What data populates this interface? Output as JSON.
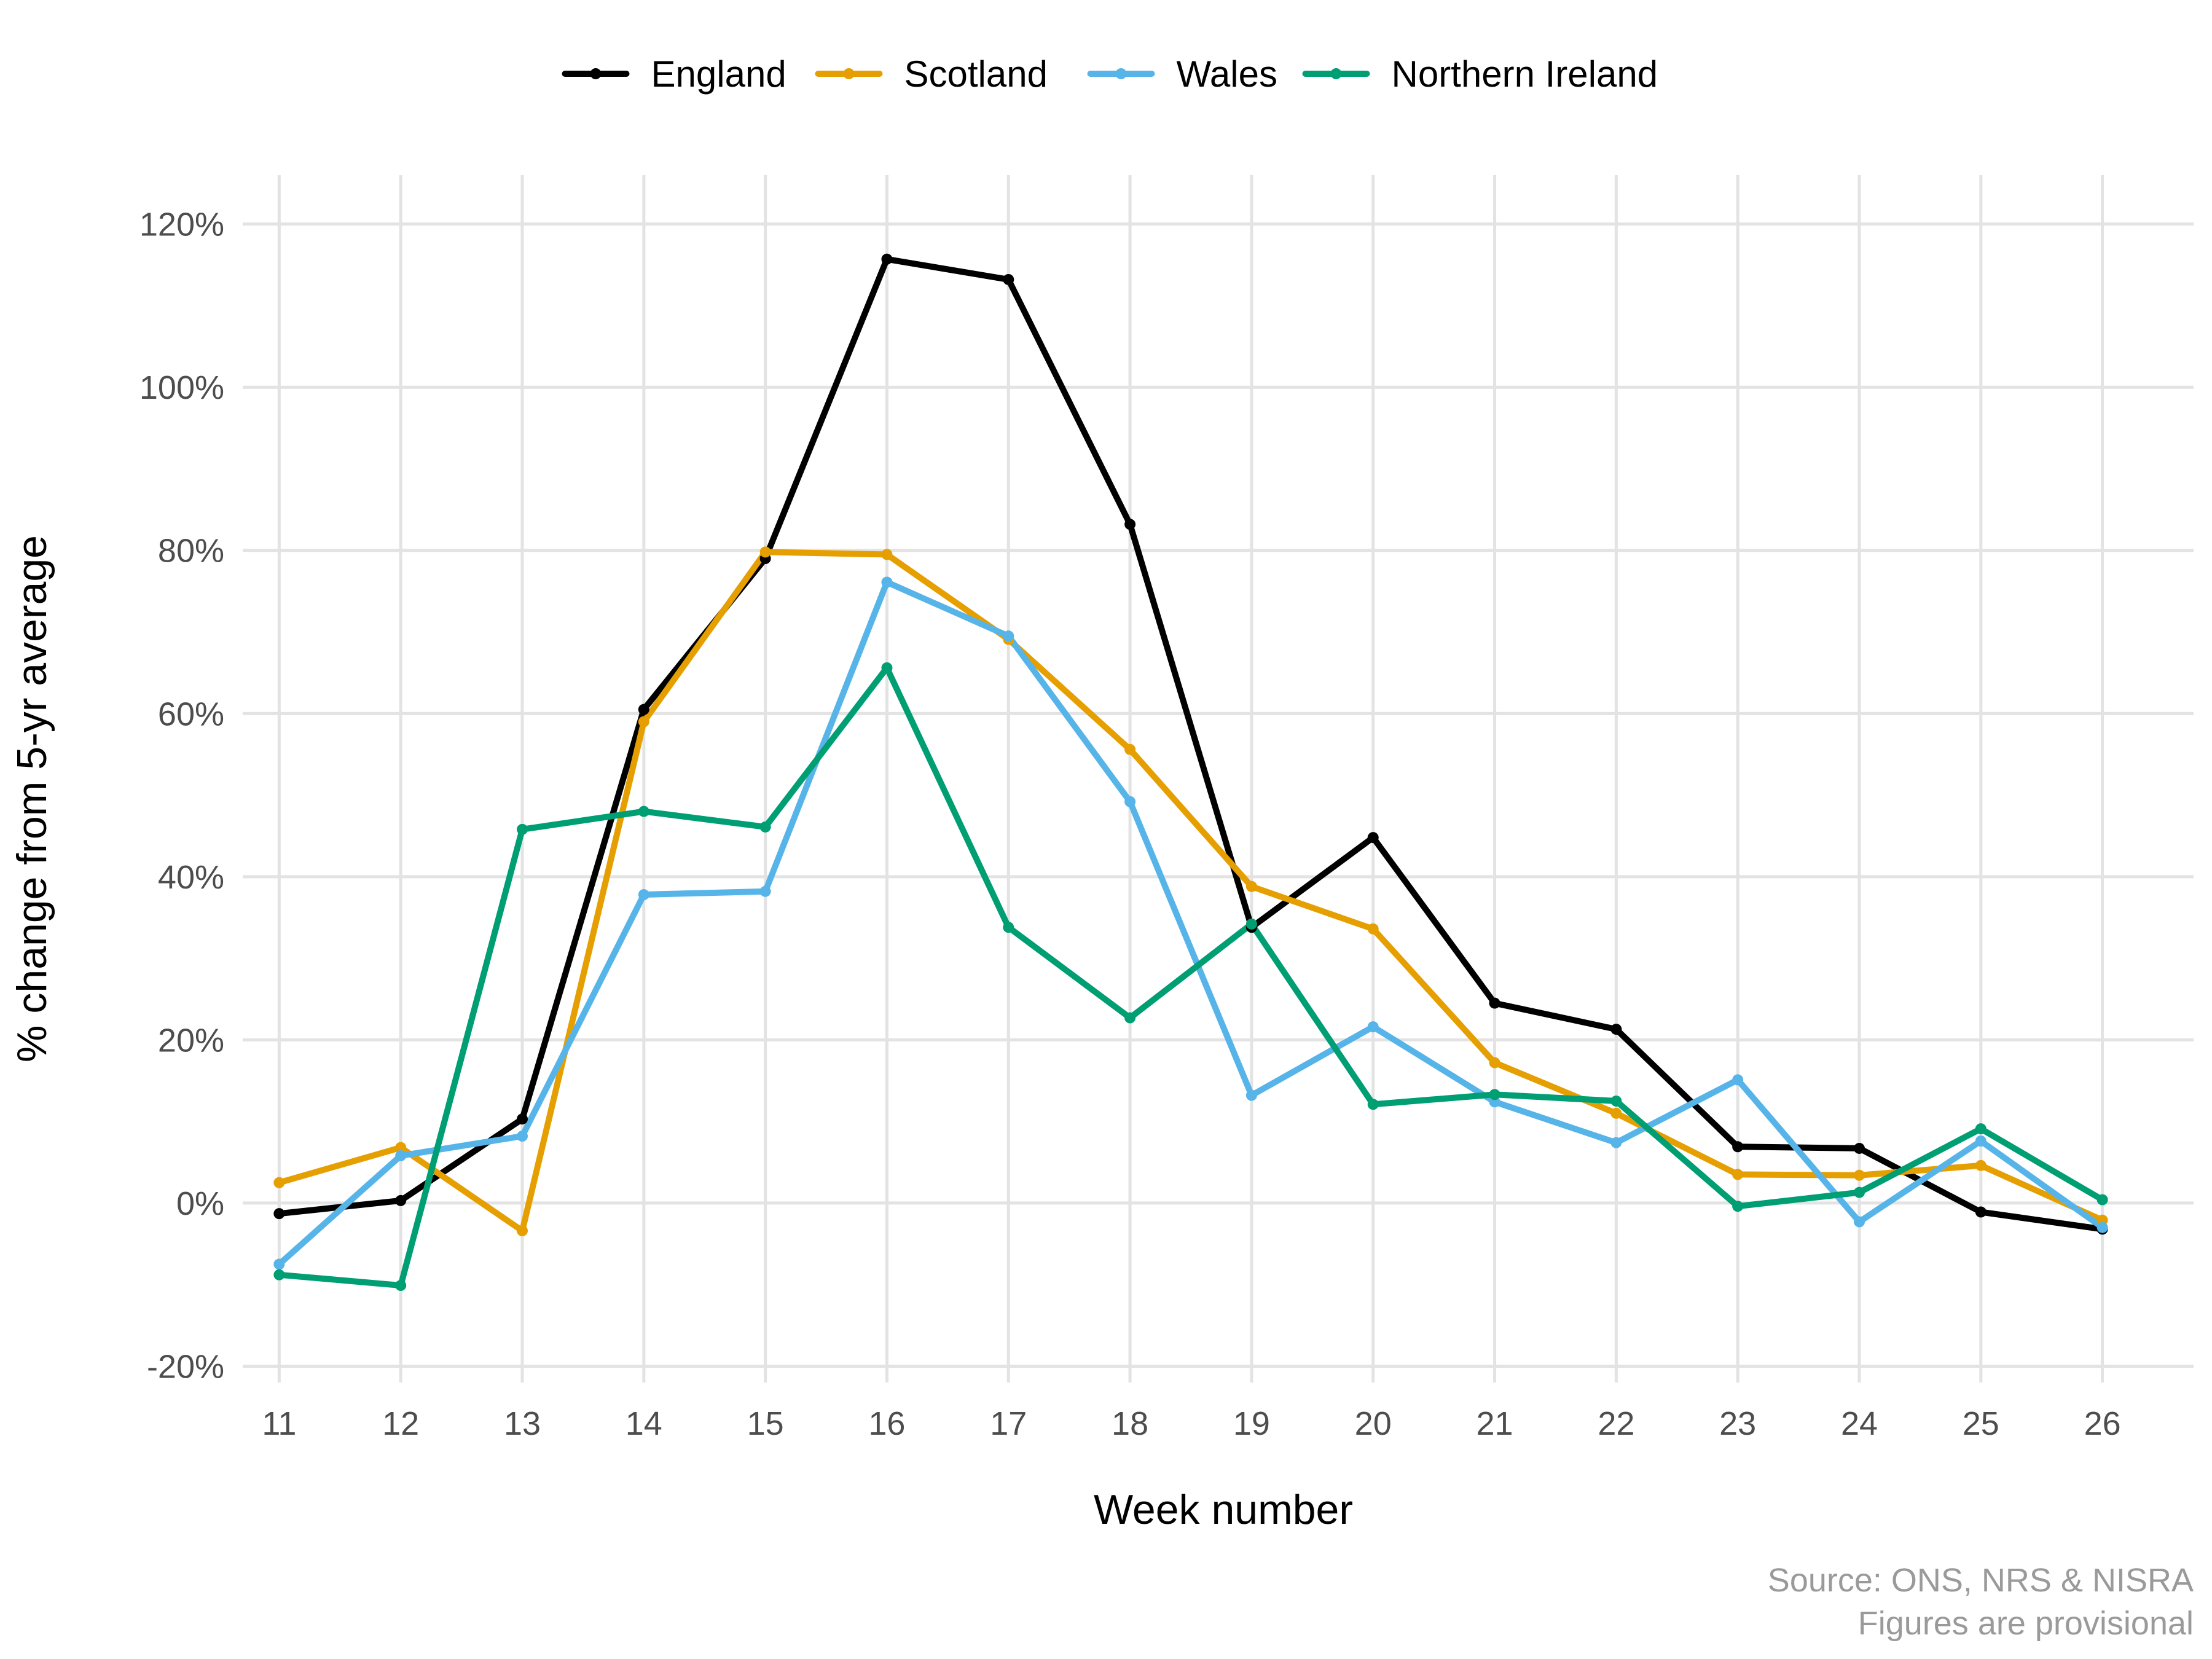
{
  "chart_data": {
    "type": "line",
    "title": "",
    "xlabel": "Week number",
    "ylabel": "% change from 5-yr average",
    "x": [
      11,
      12,
      13,
      14,
      15,
      16,
      17,
      18,
      19,
      20,
      21,
      22,
      23,
      24,
      25,
      26
    ],
    "x_tick_labels": [
      "11",
      "12",
      "13",
      "14",
      "15",
      "16",
      "17",
      "18",
      "19",
      "20",
      "21",
      "22",
      "23",
      "24",
      "25",
      "26"
    ],
    "y_tick_values": [
      -20,
      0,
      20,
      40,
      60,
      80,
      100,
      120
    ],
    "y_tick_labels": [
      "-20%",
      "0%",
      "20%",
      "40%",
      "60%",
      "80%",
      "100%",
      "120%"
    ],
    "xlim": [
      10.7,
      26.75
    ],
    "ylim": [
      -22,
      126
    ],
    "grid": true,
    "legend_position": "top",
    "series": [
      {
        "name": "England",
        "color": "#000000",
        "values": [
          -1.3,
          0.3,
          10.3,
          60.5,
          79.0,
          115.7,
          113.2,
          83.2,
          33.8,
          44.8,
          24.5,
          21.3,
          6.9,
          6.7,
          -1.1,
          -3.2
        ]
      },
      {
        "name": "Scotland",
        "color": "#E69F00",
        "values": [
          2.5,
          6.8,
          -3.4,
          59.0,
          79.8,
          79.5,
          69.1,
          55.6,
          38.8,
          33.6,
          17.2,
          11.0,
          3.5,
          3.4,
          4.6,
          -2.1
        ]
      },
      {
        "name": "Wales",
        "color": "#56B4E9",
        "values": [
          -7.5,
          5.8,
          8.2,
          37.8,
          38.2,
          76.1,
          69.5,
          49.2,
          13.2,
          21.6,
          12.4,
          7.4,
          15.1,
          -2.3,
          7.6,
          -3.0
        ]
      },
      {
        "name": "Northern Ireland",
        "color": "#009E73",
        "values": [
          -8.8,
          -10.1,
          45.8,
          48.0,
          46.1,
          65.6,
          33.8,
          22.7,
          34.2,
          12.1,
          13.3,
          12.5,
          -0.4,
          1.3,
          9.1,
          0.4
        ]
      }
    ],
    "caption_lines": [
      "Source: ONS, NRS & NISRA",
      "Figures are provisional"
    ]
  }
}
